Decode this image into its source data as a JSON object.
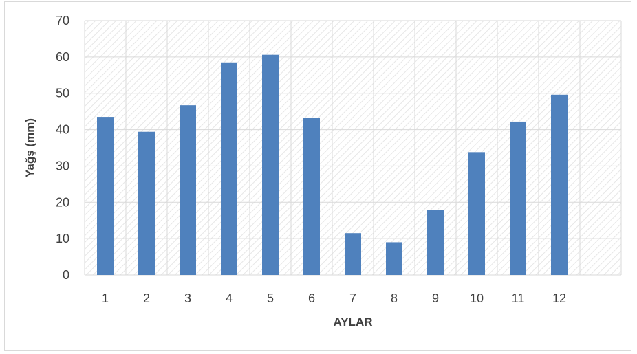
{
  "chart_data": {
    "type": "bar",
    "title": "",
    "xlabel": "AYLAR",
    "ylabel": "Yağş (mm)",
    "categories": [
      "1",
      "2",
      "3",
      "4",
      "5",
      "6",
      "7",
      "8",
      "9",
      "10",
      "11",
      "12",
      ""
    ],
    "values": [
      43.5,
      39.4,
      46.7,
      58.5,
      60.6,
      43.2,
      11.5,
      9.0,
      17.8,
      33.8,
      42.2,
      49.6,
      null
    ],
    "yticks": [
      "0",
      "10",
      "20",
      "30",
      "40",
      "50",
      "60",
      "70"
    ],
    "ylim": [
      0,
      70
    ],
    "grid": true,
    "legend": "none",
    "bar_color": "#4f81bd",
    "grid_color": "#d9d9d9",
    "hatch_color": "#e6e6e6"
  }
}
